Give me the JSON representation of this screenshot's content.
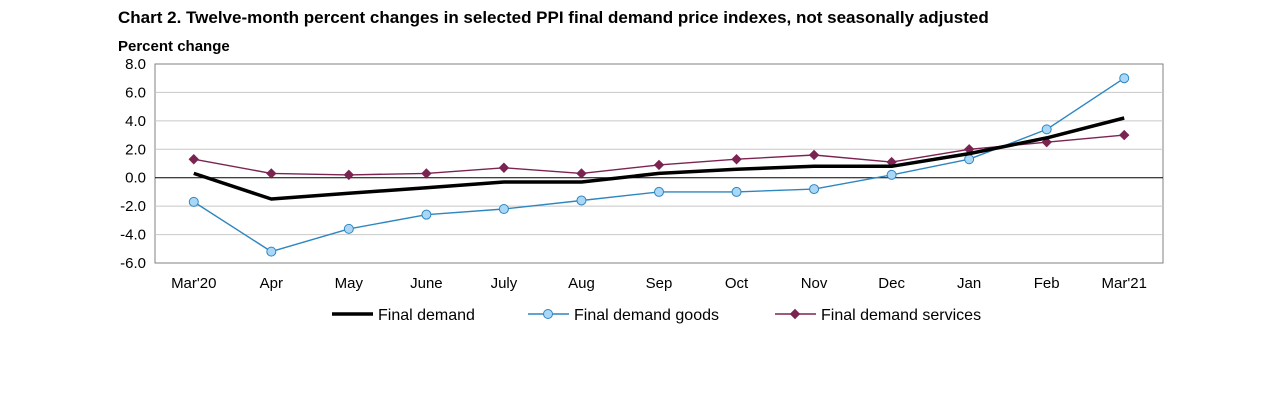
{
  "chart_data": {
    "type": "line",
    "title": "Chart 2. Twelve-month percent changes in selected PPI final demand price indexes, not seasonally adjusted",
    "ylabel": "Percent change",
    "xlabel": "",
    "ylim": [
      -6.0,
      8.0
    ],
    "yticks": [
      8.0,
      6.0,
      4.0,
      2.0,
      0.0,
      -2.0,
      -4.0,
      -6.0
    ],
    "ytick_labels": [
      "8.0",
      "6.0",
      "4.0",
      "2.0",
      "0.0",
      "-2.0",
      "-4.0",
      "-6.0"
    ],
    "grid": true,
    "legend_position": "bottom",
    "categories": [
      "Mar'20",
      "Apr",
      "May",
      "June",
      "July",
      "Aug",
      "Sep",
      "Oct",
      "Nov",
      "Dec",
      "Jan",
      "Feb",
      "Mar'21"
    ],
    "series": [
      {
        "name": "Final demand",
        "color": "#000000",
        "marker": "none",
        "values": [
          0.3,
          -1.5,
          -1.1,
          -0.7,
          -0.3,
          -0.3,
          0.3,
          0.6,
          0.8,
          0.8,
          1.7,
          2.8,
          4.2
        ]
      },
      {
        "name": "Final demand goods",
        "color": "#2e86c1",
        "marker": "circle",
        "marker_fill": "#a9d7f5",
        "values": [
          -1.7,
          -5.2,
          -3.6,
          -2.6,
          -2.2,
          -1.6,
          -1.0,
          -1.0,
          -0.8,
          0.2,
          1.3,
          3.4,
          7.0
        ]
      },
      {
        "name": "Final demand services",
        "color": "#7b2452",
        "marker": "diamond",
        "values": [
          1.3,
          0.3,
          0.2,
          0.3,
          0.7,
          0.3,
          0.9,
          1.3,
          1.6,
          1.1,
          2.0,
          2.5,
          3.0
        ]
      }
    ]
  }
}
